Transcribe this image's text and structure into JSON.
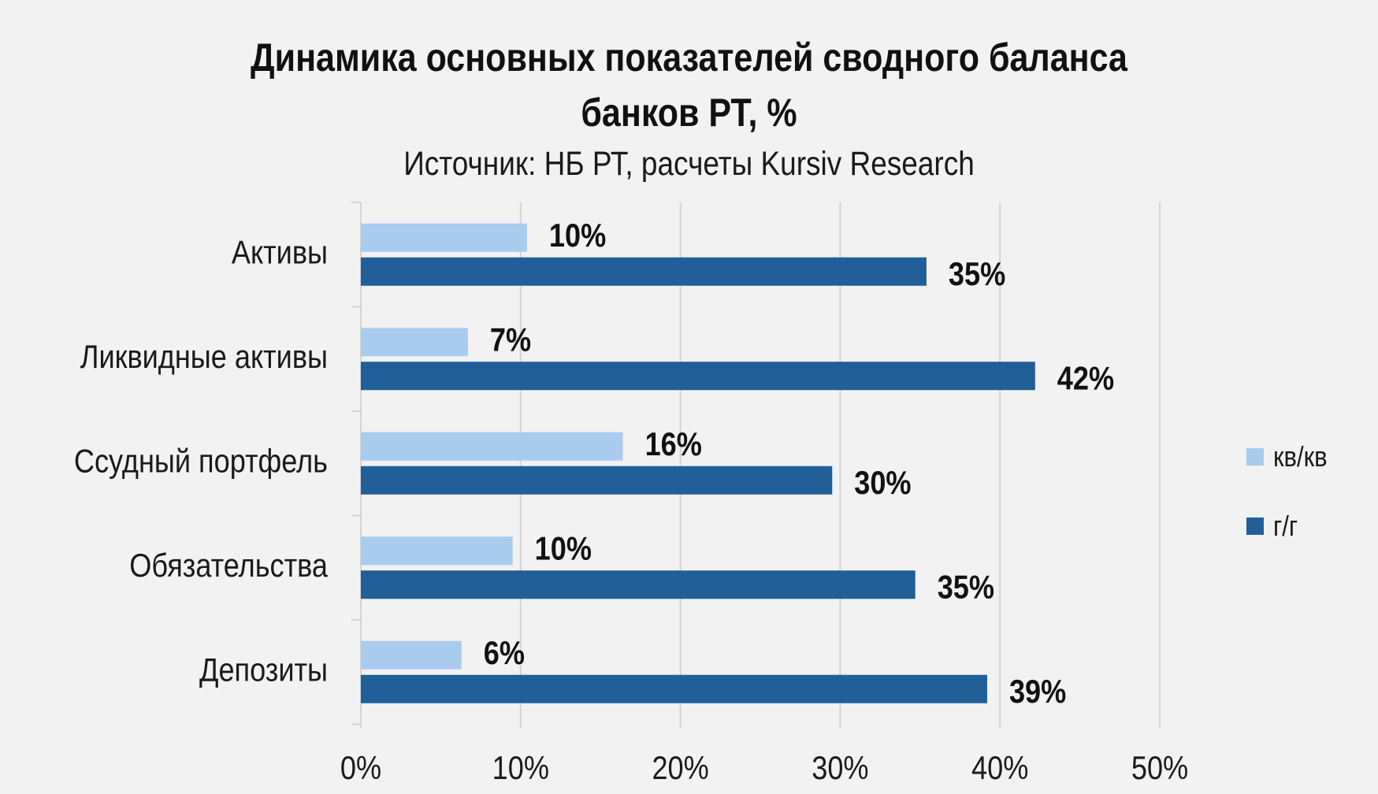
{
  "colors": {
    "background": "#f2f2f2",
    "qoq": "#a9cbee",
    "yoy": "#215f98",
    "grid": "#d4d4d4"
  },
  "chart_data": {
    "type": "bar",
    "orientation": "horizontal",
    "title_line1": "Динамика основных показателей сводного баланса",
    "title_line2": "банков РТ, %",
    "subtitle": "Источник: НБ РТ, расчеты Kursiv Research",
    "categories": [
      "Активы",
      "Ликвидные активы",
      "Ссудный портфель",
      "Обязательства",
      "Депозиты"
    ],
    "series": [
      {
        "name": "кв/кв",
        "values": [
          10.4,
          6.7,
          16.4,
          9.5,
          6.3
        ],
        "labels": [
          "10%",
          "7%",
          "16%",
          "10%",
          "6%"
        ]
      },
      {
        "name": "г/г",
        "values": [
          35.4,
          42.2,
          29.5,
          34.7,
          39.2
        ],
        "labels": [
          "35%",
          "42%",
          "30%",
          "35%",
          "39%"
        ]
      }
    ],
    "xlim": [
      0,
      50
    ],
    "xticks": [
      0,
      10,
      20,
      30,
      40,
      50
    ],
    "xtick_labels": [
      "0%",
      "10%",
      "20%",
      "30%",
      "40%",
      "50%"
    ],
    "grid": true,
    "legend_position": "right"
  }
}
